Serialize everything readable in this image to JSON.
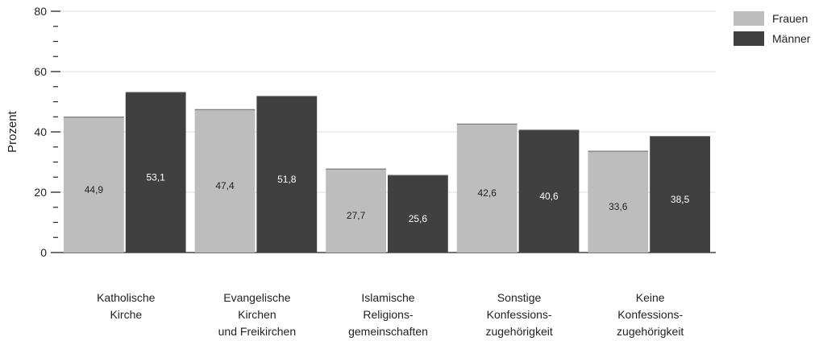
{
  "chart_data": {
    "type": "bar",
    "ylabel": "Prozent",
    "ylim": [
      0,
      80
    ],
    "yticks": [
      "0",
      "20",
      "40",
      "60",
      "80"
    ],
    "grid": true,
    "legend_position": "top-right",
    "categories": [
      [
        "Katholische",
        "Kirche"
      ],
      [
        "Evangelische",
        "Kirchen",
        "und Freikirchen"
      ],
      [
        "Islamische",
        "Religions-",
        "gemeinschaften"
      ],
      [
        "Sonstige",
        "Konfessions-",
        "zugehörigkeit"
      ],
      [
        "Keine",
        "Konfessions-",
        "zugehörigkeit"
      ]
    ],
    "series": [
      {
        "name": "Frauen",
        "color": "#bdbdbd",
        "label_color": "#222222",
        "values": [
          44.9,
          47.4,
          27.7,
          42.6,
          33.6
        ],
        "labels": [
          "44,9",
          "47,4",
          "27,7",
          "42,6",
          "33,6"
        ]
      },
      {
        "name": "Männer",
        "color": "#404040",
        "label_color": "#ffffff",
        "values": [
          53.1,
          51.8,
          25.6,
          40.6,
          38.5
        ],
        "labels": [
          "53,1",
          "51,8",
          "25,6",
          "40,6",
          "38,5"
        ]
      }
    ]
  }
}
